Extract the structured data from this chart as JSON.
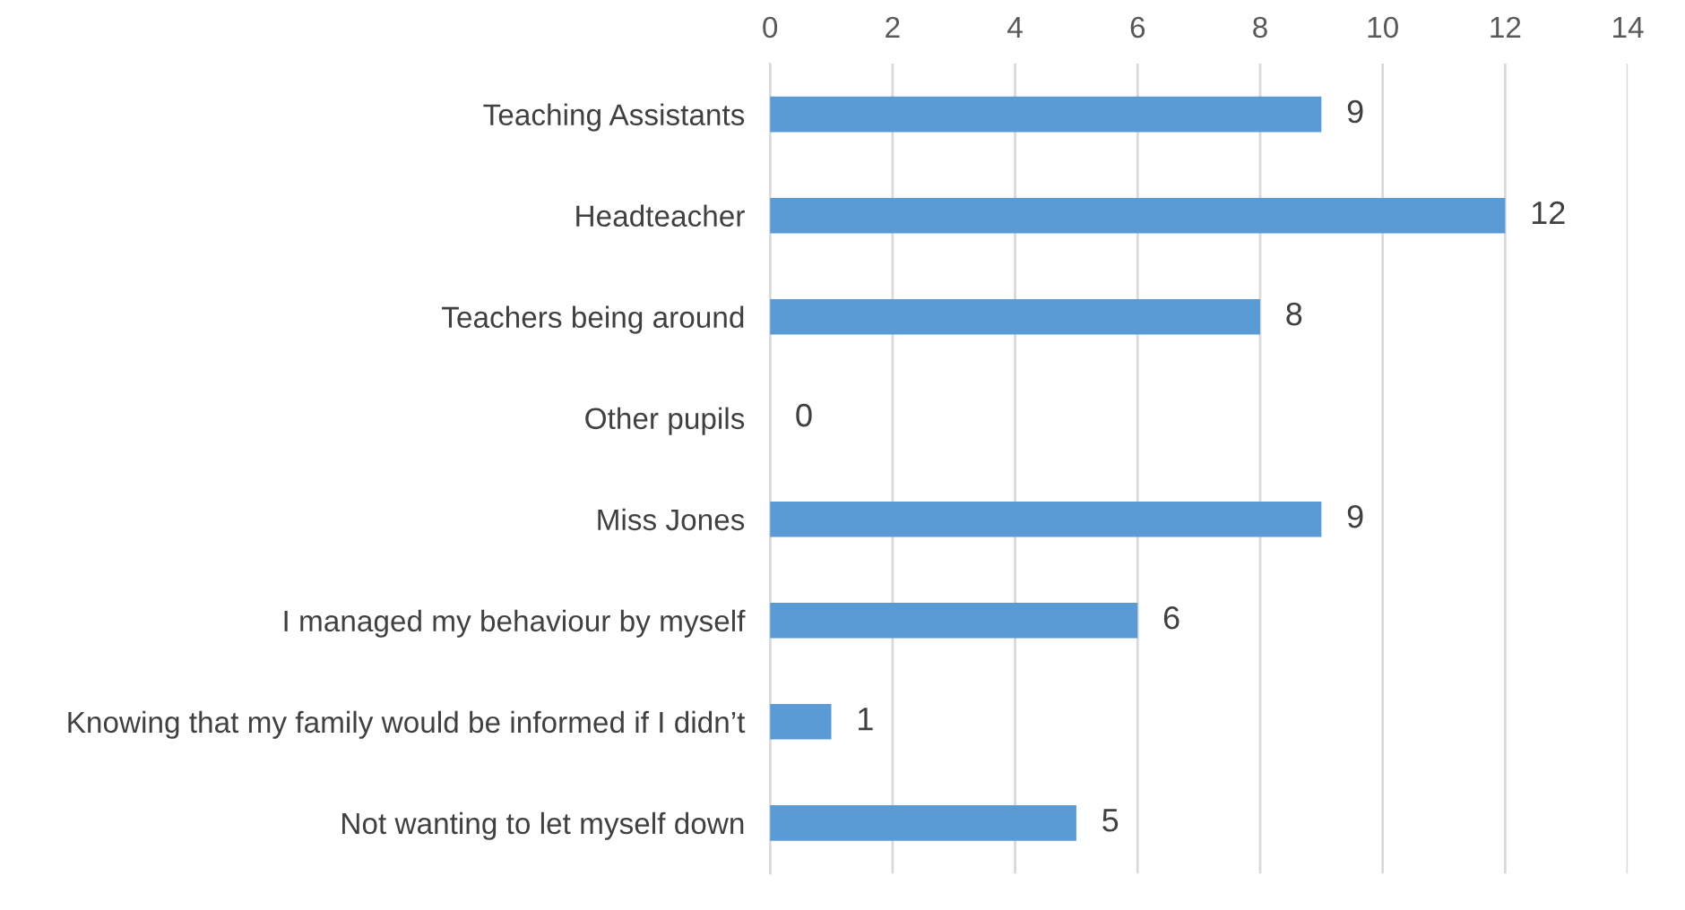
{
  "chart_data": {
    "type": "bar",
    "orientation": "horizontal",
    "categories": [
      "Teaching Assistants",
      "Headteacher",
      "Teachers being around",
      "Other pupils",
      "Miss Jones",
      "I managed my behaviour by myself",
      "Knowing that my family would be informed if I didn’t",
      "Not wanting to let myself down"
    ],
    "values": [
      9,
      12,
      8,
      0,
      9,
      6,
      1,
      5
    ],
    "color": "#5b9bd5",
    "xlim": [
      0,
      14
    ],
    "xticks": [
      0,
      2,
      4,
      6,
      8,
      10,
      12,
      14
    ],
    "grid": "x",
    "data_labels": true
  }
}
